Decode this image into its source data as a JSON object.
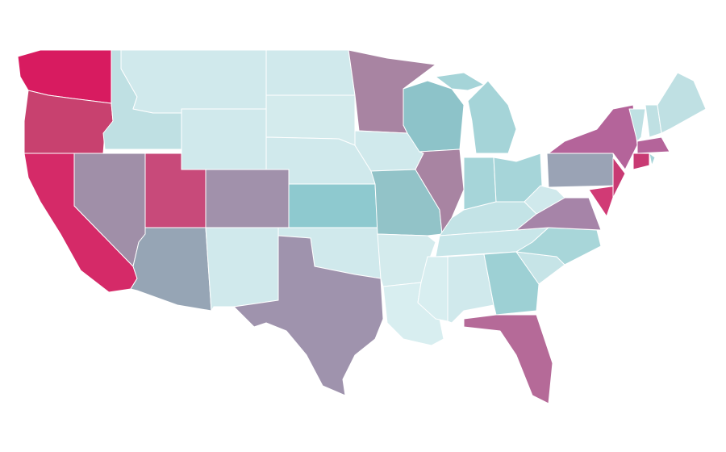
{
  "map": {
    "regions": [
      {
        "color": "#d81b60"
      },
      {
        "color": "#c8416f"
      },
      {
        "color": "#d52a68"
      },
      {
        "color": "#bfe0e3"
      },
      {
        "color": "#a08fa8"
      },
      {
        "color": "#c84a7a"
      },
      {
        "color": "#96a5b5"
      },
      {
        "color": "#d0e9ec"
      },
      {
        "color": "#d0e9ec"
      },
      {
        "color": "#a191ab"
      },
      {
        "color": "#d0e9ec"
      },
      {
        "color": "#d0e9ec"
      },
      {
        "color": "#d4ebed"
      },
      {
        "color": "#d0e9ec"
      },
      {
        "color": "#8ec9cf"
      },
      {
        "color": "#d0e9ec"
      },
      {
        "color": "#9f93ad"
      },
      {
        "color": "#a884a2"
      },
      {
        "color": "#d0e9ec"
      },
      {
        "color": "#92c3c8"
      },
      {
        "color": "#d4ebed"
      },
      {
        "color": "#d8eef0"
      },
      {
        "color": "#8dc3c9"
      },
      {
        "color": "#a884a2"
      },
      {
        "color": "#a5d4d8"
      },
      {
        "color": "#a5d4d8"
      },
      {
        "color": "#a6d5d9"
      },
      {
        "color": "#a6d5d9"
      },
      {
        "color": "#c3e3e6"
      },
      {
        "color": "#c8e6e9"
      },
      {
        "color": "#d8eef0"
      },
      {
        "color": "#d0e9ec"
      },
      {
        "color": "#9dd0d4"
      },
      {
        "color": "#b56a98"
      },
      {
        "color": "#c6e4e7"
      },
      {
        "color": "#a8d6d9"
      },
      {
        "color": "#a684a8"
      },
      {
        "color": "#d0e9ec"
      },
      {
        "color": "#9aa3b5"
      },
      {
        "color": "#b4649a"
      },
      {
        "color": "#d13a75"
      },
      {
        "color": "#c83a73"
      },
      {
        "color": "#bfe0e3"
      },
      {
        "color": "#bfe0e3"
      },
      {
        "color": "#bfe0e3"
      },
      {
        "color": "#b4649a"
      },
      {
        "color": "#c83a73"
      },
      {
        "color": "#a5d4d8"
      }
    ]
  }
}
